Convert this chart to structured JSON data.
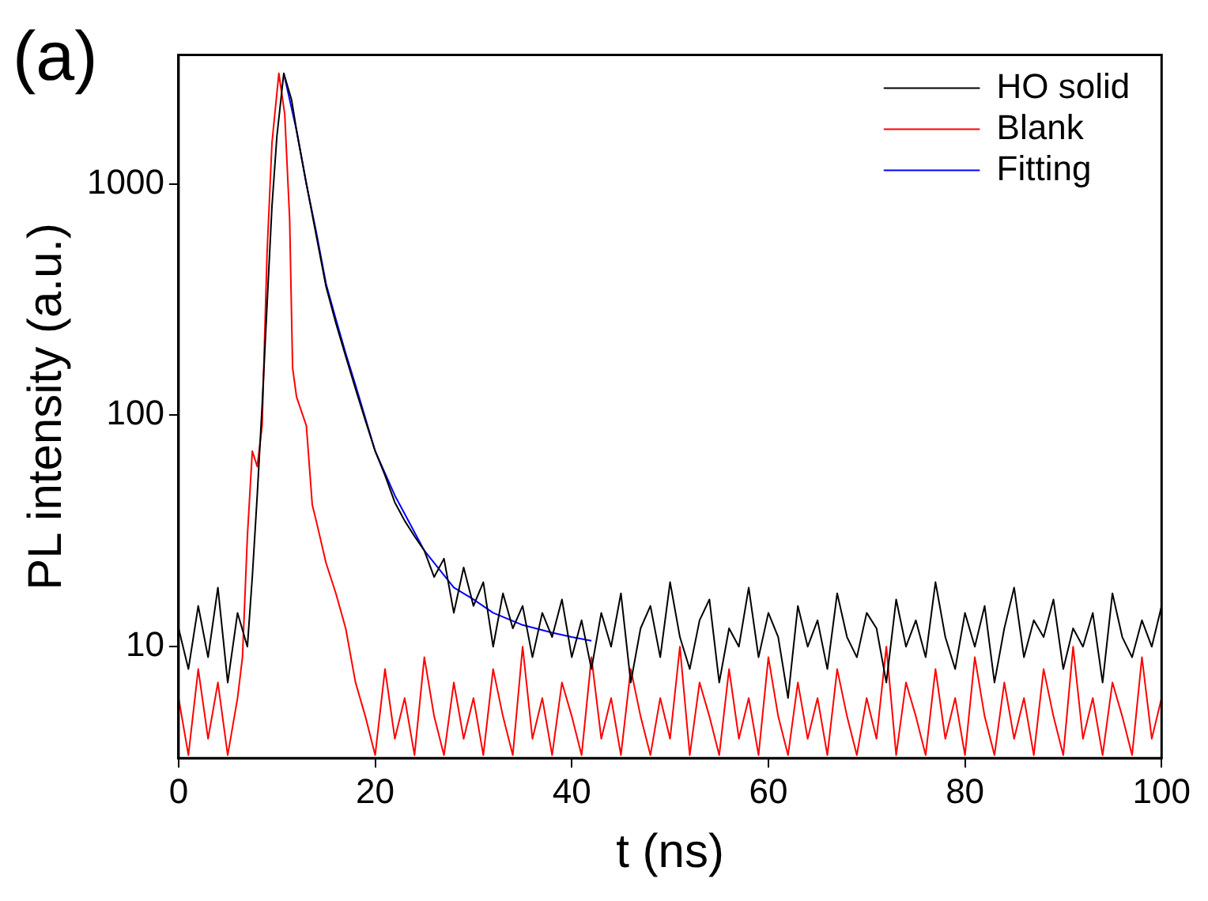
{
  "chart_data": {
    "type": "line",
    "title": "(a)",
    "xlabel": "t (ns)",
    "ylabel": "PL intensity (a.u.)",
    "xlim": [
      0,
      100
    ],
    "xticks": [
      0,
      20,
      40,
      60,
      80,
      100
    ],
    "ylim": [
      3.3,
      3600
    ],
    "yticks": [
      10,
      100,
      1000
    ],
    "log": "y",
    "grid": false,
    "legend": "top right",
    "marker": "none",
    "line_style": "solid",
    "series": [
      {
        "name": "HO solid",
        "color": "#000000",
        "x": [
          0,
          1,
          2,
          3,
          4,
          5,
          6,
          7,
          7.5,
          8,
          8.5,
          9,
          9.5,
          10,
          10.7,
          11.5,
          12,
          13,
          14,
          15,
          16,
          17,
          18,
          19,
          20,
          21,
          22,
          23,
          24,
          25,
          26,
          27,
          28,
          29,
          30,
          31,
          32,
          33,
          34,
          35,
          36,
          37,
          38,
          39,
          40,
          41,
          42,
          43,
          44,
          45,
          46,
          47,
          48,
          49,
          50,
          51,
          52,
          53,
          54,
          55,
          56,
          57,
          58,
          59,
          60,
          61,
          62,
          63,
          64,
          65,
          66,
          67,
          68,
          69,
          70,
          71,
          72,
          73,
          74,
          75,
          76,
          77,
          78,
          79,
          80,
          81,
          82,
          83,
          84,
          85,
          86,
          87,
          88,
          89,
          90,
          91,
          92,
          93,
          94,
          95,
          96,
          97,
          98,
          99,
          100
        ],
        "values": [
          12,
          8,
          15,
          9,
          18,
          7,
          14,
          10,
          20,
          45,
          110,
          300,
          800,
          1600,
          3000,
          2300,
          1700,
          1000,
          600,
          360,
          250,
          180,
          130,
          95,
          70,
          55,
          42,
          35,
          30,
          26,
          20,
          24,
          14,
          22,
          15,
          19,
          10,
          17,
          12,
          15,
          9,
          14,
          11,
          16,
          9,
          13,
          8,
          14,
          10,
          17,
          7,
          12,
          15,
          9,
          19,
          11,
          8,
          13,
          16,
          7,
          12,
          10,
          18,
          9,
          14,
          11,
          6,
          15,
          10,
          13,
          8,
          17,
          11,
          9,
          14,
          12,
          7,
          16,
          10,
          13,
          9,
          19,
          11,
          8,
          14,
          10,
          15,
          7,
          12,
          18,
          9,
          13,
          11,
          16,
          8,
          12,
          10,
          14,
          7,
          17,
          11,
          9,
          13,
          10,
          15
        ]
      },
      {
        "name": "Blank",
        "color": "#ff0000",
        "x": [
          0,
          1,
          2,
          3,
          4,
          5,
          6,
          6.5,
          7,
          7.5,
          8,
          8.5,
          9,
          9.5,
          10.2,
          10.8,
          11.3,
          11.6,
          12,
          13,
          13.6,
          14,
          15,
          16,
          17,
          18,
          19,
          20,
          21,
          22,
          23,
          24,
          25,
          26,
          27,
          28,
          29,
          30,
          31,
          32,
          33,
          34,
          35,
          36,
          37,
          38,
          39,
          40,
          41,
          42,
          43,
          44,
          45,
          46,
          47,
          48,
          49,
          50,
          51,
          52,
          53,
          54,
          55,
          56,
          57,
          58,
          59,
          60,
          61,
          62,
          63,
          64,
          65,
          66,
          67,
          68,
          69,
          70,
          71,
          72,
          73,
          74,
          75,
          76,
          77,
          78,
          79,
          80,
          81,
          82,
          83,
          84,
          85,
          86,
          87,
          88,
          89,
          90,
          91,
          92,
          93,
          94,
          95,
          96,
          97,
          98,
          99,
          100
        ],
        "values": [
          6,
          3.4,
          8,
          4,
          7,
          3.4,
          6,
          9,
          30,
          70,
          60,
          90,
          500,
          1500,
          3000,
          2000,
          700,
          160,
          120,
          90,
          41,
          35,
          23,
          17,
          12,
          7,
          5,
          3.4,
          8,
          4,
          6,
          3.4,
          9,
          5,
          3.4,
          7,
          4,
          6,
          3.4,
          8,
          5,
          3.4,
          10,
          4,
          6,
          3.4,
          7,
          5,
          3.4,
          9,
          4,
          6,
          3.4,
          8,
          5,
          3.4,
          6,
          4,
          10,
          3.4,
          7,
          5,
          3.4,
          8,
          4,
          6,
          3.4,
          9,
          5,
          3.4,
          7,
          4,
          6,
          3.4,
          8,
          5,
          3.4,
          6,
          4,
          10,
          3.4,
          7,
          5,
          3.4,
          8,
          4,
          6,
          3.4,
          9,
          5,
          3.4,
          7,
          4,
          6,
          3.4,
          8,
          5,
          3.4,
          10,
          4,
          6,
          3.4,
          7,
          5,
          3.4,
          9,
          4,
          6
        ]
      },
      {
        "name": "Fitting",
        "color": "#0000ff",
        "x": [
          10.7,
          12,
          13,
          14,
          15,
          16,
          17,
          18,
          20,
          22,
          25,
          28,
          30,
          32,
          35,
          38,
          40,
          42
        ],
        "values": [
          3000,
          1700,
          1000,
          620,
          370,
          260,
          185,
          135,
          70,
          45,
          26,
          18,
          16,
          14,
          12.4,
          11.5,
          11,
          10.6
        ]
      }
    ]
  }
}
